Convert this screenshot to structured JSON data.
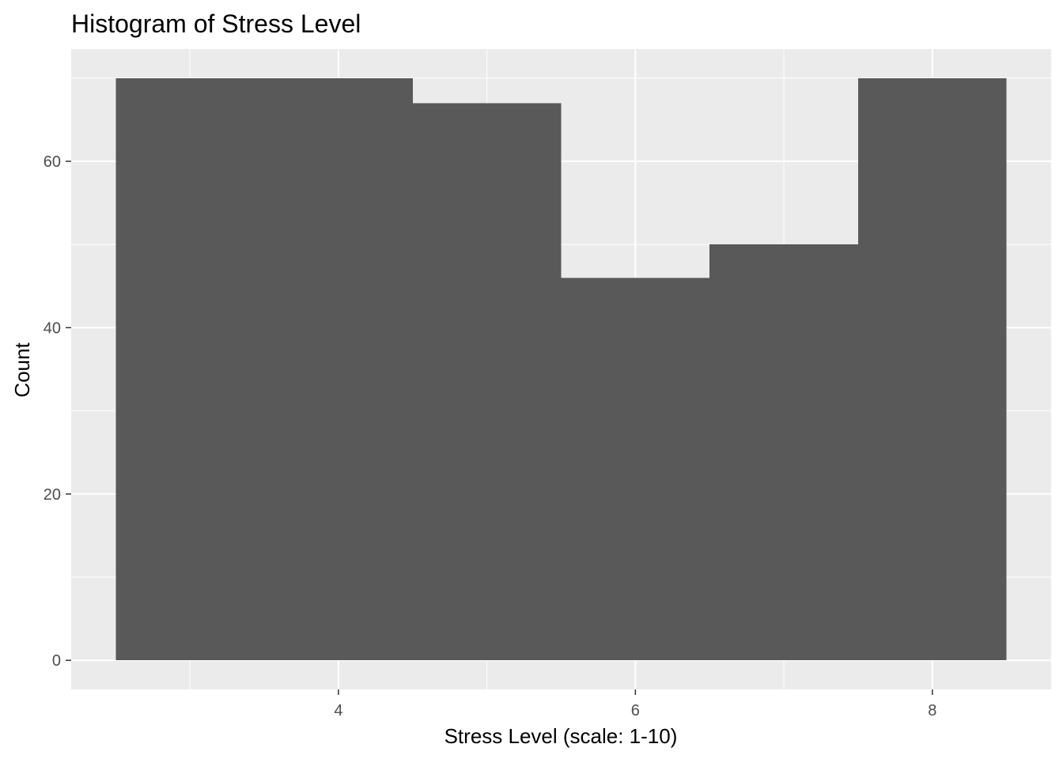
{
  "chart_data": {
    "type": "bar",
    "title": "Histogram of Stress Level",
    "xlabel": "Stress Level (scale: 1-10)",
    "ylabel": "Count",
    "bins": [
      {
        "x0": 2.5,
        "x1": 3.5,
        "count": 70
      },
      {
        "x0": 3.5,
        "x1": 4.5,
        "count": 70
      },
      {
        "x0": 4.5,
        "x1": 5.5,
        "count": 67
      },
      {
        "x0": 5.5,
        "x1": 6.5,
        "count": 46
      },
      {
        "x0": 6.5,
        "x1": 7.5,
        "count": 50
      },
      {
        "x0": 7.5,
        "x1": 8.5,
        "count": 70
      }
    ],
    "xlim": [
      2.2,
      8.8
    ],
    "ylim": [
      -3.5,
      73.5
    ],
    "x_major_ticks": [
      4,
      6,
      8
    ],
    "x_minor_ticks": [
      3,
      5,
      7
    ],
    "y_major_ticks": [
      0,
      20,
      40,
      60
    ],
    "y_minor_ticks": [
      10,
      30,
      50,
      70
    ],
    "grid": true,
    "colors": {
      "bar_fill": "#595959",
      "panel_background": "#ebebeb",
      "grid": "#ffffff",
      "tick_text": "#4d4d4d",
      "tick_mark": "#333333"
    }
  }
}
